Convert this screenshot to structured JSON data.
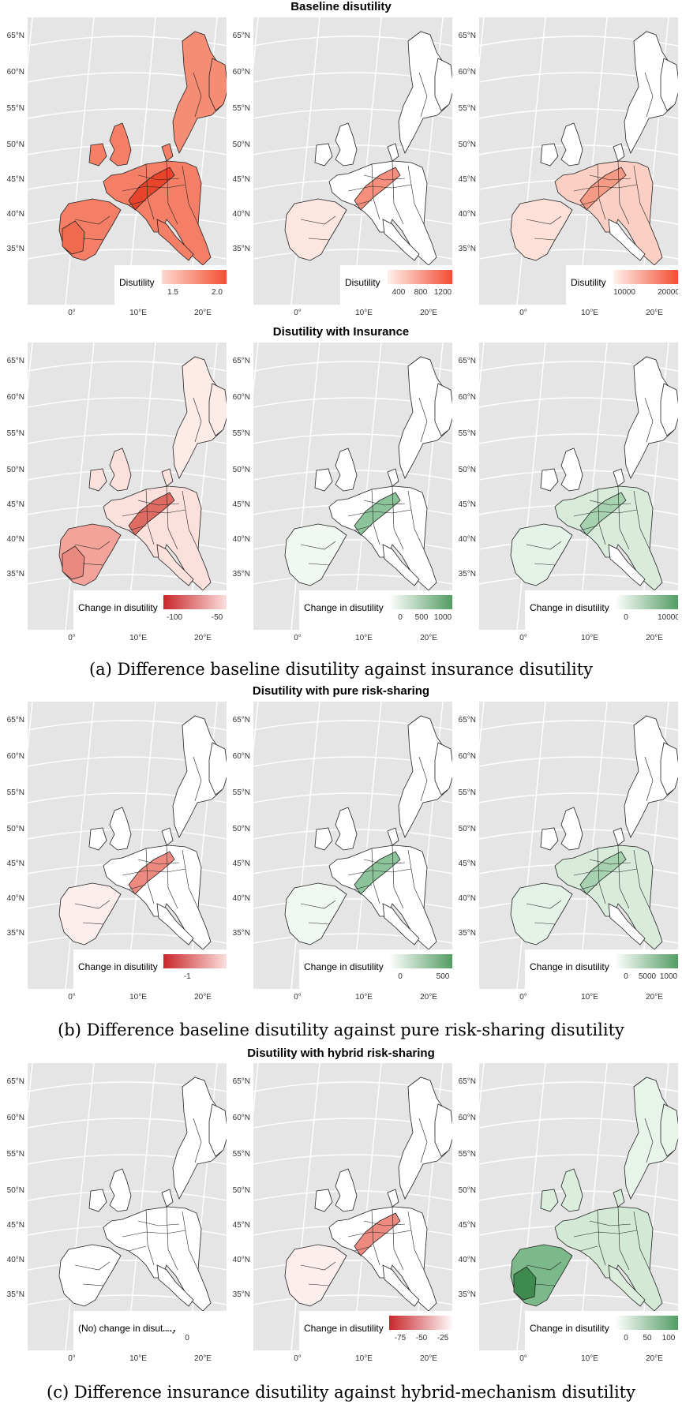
{
  "sections": [
    {
      "title": "Baseline disutility",
      "caption": "",
      "panels": [
        {
          "legend_label": "Disutility",
          "ticks": [
            "1.5",
            "2.0"
          ],
          "colors": [
            "#fdd9cf",
            "#f44b2e"
          ],
          "fill": "orange-red"
        },
        {
          "legend_label": "Disutility",
          "ticks": [
            "400",
            "800",
            "1200"
          ],
          "colors": [
            "#fff0ec",
            "#f24a2d"
          ],
          "fill": "light-red-corridor"
        },
        {
          "legend_label": "Disutility",
          "ticks": [
            "10000",
            "20000"
          ],
          "colors": [
            "#fff0ec",
            "#f24a2d"
          ],
          "fill": "mixed-red"
        }
      ]
    },
    {
      "title": "Disutility with Insurance",
      "caption": "(a) Difference baseline disutility against insurance disutility",
      "panels": [
        {
          "legend_label": "Change in disutility",
          "ticks": [
            "-100",
            "-50"
          ],
          "colors": [
            "#c8262a",
            "#fde3e1"
          ],
          "fill": "pink-red"
        },
        {
          "legend_label": "Change in disutility",
          "ticks": [
            "0",
            "500",
            "1000"
          ],
          "colors": [
            "#ffffff",
            "#4f9a5f"
          ],
          "fill": "green-corridor"
        },
        {
          "legend_label": "Change in disutility",
          "ticks": [
            "0",
            "10000"
          ],
          "colors": [
            "#ffffff",
            "#4f9a5f"
          ],
          "fill": "green-wide"
        }
      ]
    },
    {
      "title": "Disutility with pure risk-sharing",
      "caption": "(b) Difference baseline disutility against pure risk-sharing disutility",
      "panels": [
        {
          "legend_label": "Change in disutility",
          "ticks": [
            "-1"
          ],
          "colors": [
            "#c8262a",
            "#fde3e1"
          ],
          "fill": "red-corridor"
        },
        {
          "legend_label": "Change in disutility",
          "ticks": [
            "0",
            "500"
          ],
          "colors": [
            "#ffffff",
            "#4f9a5f"
          ],
          "fill": "green-corridor"
        },
        {
          "legend_label": "Change in disutility",
          "ticks": [
            "0",
            "5000",
            "1000"
          ],
          "colors": [
            "#ffffff",
            "#4f9a5f"
          ],
          "fill": "green-wide"
        }
      ]
    },
    {
      "title": "Disutility with hybrid risk-sharing",
      "caption": "(c) Difference insurance disutility against hybrid-mechanism disutility",
      "panels": [
        {
          "legend_label": "(No) change in disutility",
          "ticks": [
            "0"
          ],
          "colors": [
            "#ffffff",
            "#ffffff"
          ],
          "fill": "white"
        },
        {
          "legend_label": "Change in disutility",
          "ticks": [
            "-75",
            "-50",
            "-25"
          ],
          "colors": [
            "#c8262a",
            "#ffffff"
          ],
          "fill": "red-corridor"
        },
        {
          "legend_label": "Change in disutility",
          "ticks": [
            "0",
            "50",
            "100"
          ],
          "colors": [
            "#ffffff",
            "#4f9a5f"
          ],
          "fill": "green-iberia"
        }
      ]
    }
  ],
  "lat_labels": [
    "65°N",
    "60°N",
    "55°N",
    "50°N",
    "45°N",
    "40°N",
    "35°N"
  ],
  "lon_labels": [
    "0°",
    "10°E",
    "20°E"
  ],
  "map_background": "#e5e5e5",
  "grid_color": "#ffffff"
}
